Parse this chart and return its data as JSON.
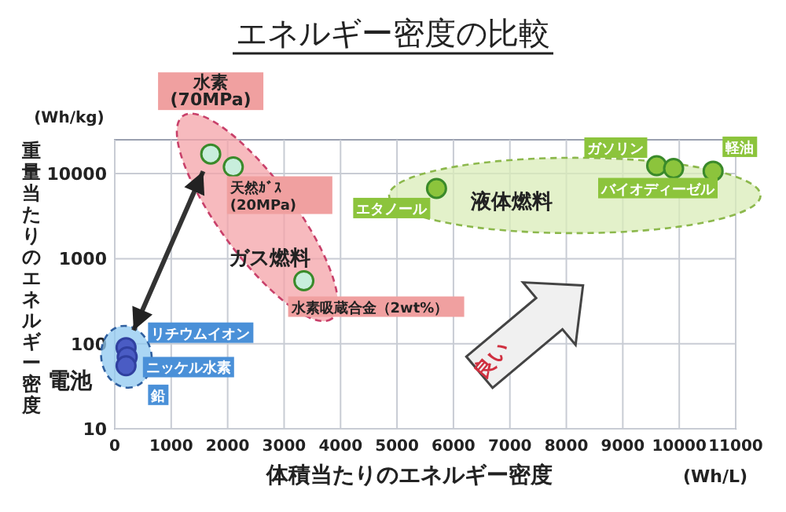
{
  "chart_data": {
    "type": "scatter",
    "title": "エネルギー密度の比較",
    "xlabel": "体積当たりのエネルギー密度",
    "ylabel": "重量当たりのエネルギー密度",
    "log": "y",
    "grid": true,
    "marker": "circle",
    "xlim": [
      0,
      11000
    ],
    "xticks": [
      0,
      1000,
      2000,
      3000,
      4000,
      5000,
      6000,
      7000,
      8000,
      9000,
      10000,
      11000
    ],
    "ylim": [
      10,
      25000
    ],
    "yticks": [
      10,
      100,
      1000,
      10000
    ],
    "series": [
      {
        "name": "ガス燃料",
        "color": "#c8eedc",
        "x": [
          1700,
          2100,
          3350
        ],
        "values": [
          17000,
          12000,
          550
        ]
      },
      {
        "name": "液体燃料",
        "color": "#8cc43c",
        "x": [
          5700,
          9600,
          9900,
          10600
        ],
        "values": [
          6700,
          12400,
          11500,
          10700
        ]
      },
      {
        "name": "電池",
        "color": "#4a5cc4",
        "x": [
          200,
          220,
          200
        ],
        "values": [
          90,
          70,
          55
        ]
      }
    ],
    "annotations": [
      {
        "text": "水素\n(70MPa)",
        "x": 1700,
        "y": 17000
      },
      {
        "text": "天然ｶﾞｽ\n(20MPa)",
        "x": 2100,
        "y": 12000
      },
      {
        "text": "水素吸蔵合金（2wt%）",
        "x": 3350,
        "y": 550
      },
      {
        "text": "リチウムイオン",
        "x": 200,
        "y": 90
      },
      {
        "text": "ニッケル水素",
        "x": 220,
        "y": 70
      },
      {
        "text": "鉛",
        "x": 200,
        "y": 55
      },
      {
        "text": "エタノール",
        "x": 5700,
        "y": 6700
      },
      {
        "text": "ガソリン",
        "x": 9600,
        "y": 12400
      },
      {
        "text": "バイオディーゼル",
        "x": 9900,
        "y": 11500
      },
      {
        "text": "軽油",
        "x": 10600,
        "y": 10700
      },
      "(Wh/kg)",
      "(Wh/L)",
      "良い"
    ]
  }
}
